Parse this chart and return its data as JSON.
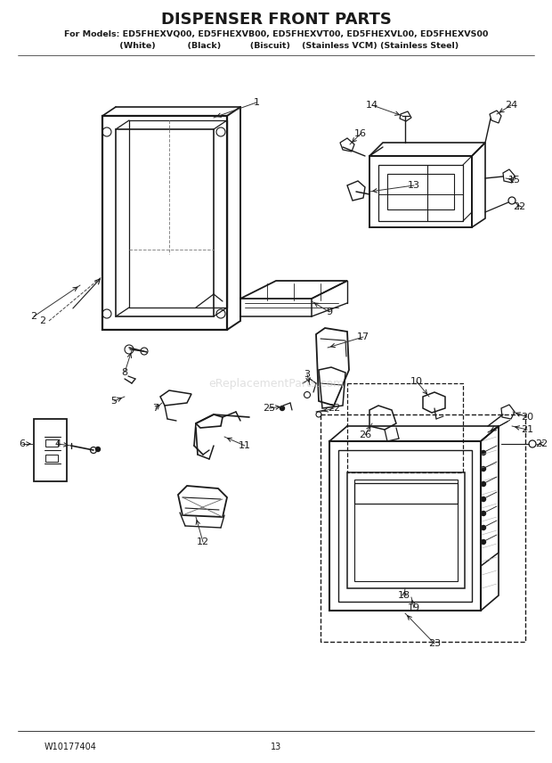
{
  "title": "DISPENSER FRONT PARTS",
  "subtitle_line1": "For Models: ED5FHEXVQ00, ED5FHEXVB00, ED5FHEXVT00, ED5FHEXVL00, ED5FHEXVS00",
  "subtitle_line2": "         (White)           (Black)          (Biscuit)    (Stainless VCM) (Stainless Steel)",
  "footer_left": "W10177404",
  "footer_center": "13",
  "bg_color": "#ffffff",
  "line_color": "#1a1a1a",
  "watermark": "eReplacementParts.com",
  "figsize": [
    6.2,
    8.56
  ],
  "dpi": 100
}
